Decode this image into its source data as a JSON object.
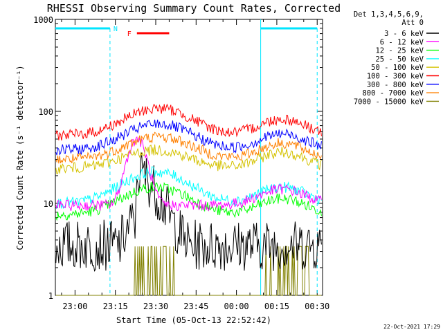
{
  "chart_data": {
    "type": "line",
    "title": "RHESSI Observing Summary Count Rates, Corrected",
    "xlabel": "Start Time (05-Oct-13 22:52:42)",
    "ylabel": "Corrected Count Rate (s⁻¹ detector⁻¹)",
    "y_scale": "log",
    "ylim": [
      1,
      1000
    ],
    "y_ticks": [
      1,
      10,
      100,
      1000
    ],
    "y_tick_labels": [
      "1",
      "10",
      "100",
      "1000"
    ],
    "xlim": [
      "22:52:42",
      "00:32:00"
    ],
    "x_tick_labels": [
      "23:00",
      "23:15",
      "23:30",
      "23:45",
      "00:00",
      "00:15",
      "00:30"
    ],
    "x_tick_minutes": [
      0,
      15,
      30,
      45,
      60,
      75,
      90
    ],
    "x_tick_ref": "23:00",
    "legend_header": [
      "Det 1,3,4,5,6,9,",
      "Att 0"
    ],
    "legend_position": "right, outside plot",
    "series": [
      {
        "name": "3 - 6 keV",
        "color": "#000000",
        "base": 3.5,
        "peak": 18,
        "peak_time": "23:25"
      },
      {
        "name": "6 - 12 keV",
        "color": "#ff00ff",
        "base": 9.5,
        "peak": 50,
        "peak_time": "23:23"
      },
      {
        "name": "12 - 25 keV",
        "color": "#00ff00",
        "base": 7.5,
        "peak": 15,
        "peak_time": "23:30"
      },
      {
        "name": "25 - 50 keV",
        "color": "#00ffff",
        "base": 10,
        "peak": 22,
        "peak_time": "23:30"
      },
      {
        "name": "50 - 100 keV",
        "color": "#d4c200",
        "base": 24,
        "peak": 38,
        "peak_time": "23:30"
      },
      {
        "name": "100 - 300 keV",
        "color": "#ff0000",
        "base": 55,
        "peak": 108,
        "peak_time": "23:31"
      },
      {
        "name": "300 - 800 keV",
        "color": "#0000ff",
        "base": 38,
        "peak": 73,
        "peak_time": "23:31"
      },
      {
        "name": "800 - 7000 keV",
        "color": "#ff8000",
        "base": 30,
        "peak": 53,
        "peak_time": "23:31"
      },
      {
        "name": "7000 - 15000 keV",
        "color": "#808000",
        "base": 2.3,
        "peak": 3.4,
        "peak_time": "23:30"
      }
    ],
    "flags": {
      "N_label": "N",
      "F_label": "F",
      "night_intervals": [
        [
          "22:52:42",
          "23:13:00"
        ],
        [
          "00:09:00",
          "00:30:00"
        ]
      ],
      "flare_interval": [
        "23:23:00",
        "23:35:00"
      ],
      "colors": {
        "night": "#00e5ff",
        "flare": "#ff0000"
      }
    },
    "timestamp": "22-Oct-2021 17:29"
  }
}
